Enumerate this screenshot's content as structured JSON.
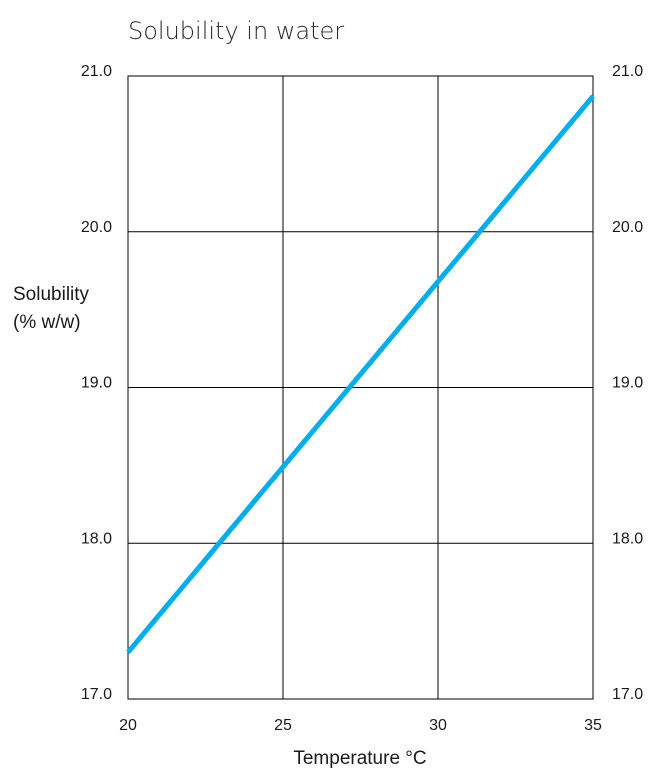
{
  "chart_data": {
    "type": "line",
    "title": "Solubility in water",
    "xlabel": "Temperature °C",
    "ylabel": [
      "Solubility",
      "(% w/w)"
    ],
    "xlim": [
      20,
      35
    ],
    "ylim": [
      17.0,
      21.0
    ],
    "x_ticks": [
      "20",
      "25",
      "30",
      "35"
    ],
    "y_ticks": [
      "17.0",
      "18.0",
      "19.0",
      "20.0",
      "21.0"
    ],
    "y_ticks_right": [
      "17.0",
      "18.0",
      "19.0",
      "20.0",
      "21.0"
    ],
    "grid": true,
    "series": [
      {
        "x": [
          20,
          35
        ],
        "y": [
          17.3,
          20.87
        ]
      }
    ],
    "colors": {
      "line": "#00adef",
      "grid": "#000000"
    }
  }
}
